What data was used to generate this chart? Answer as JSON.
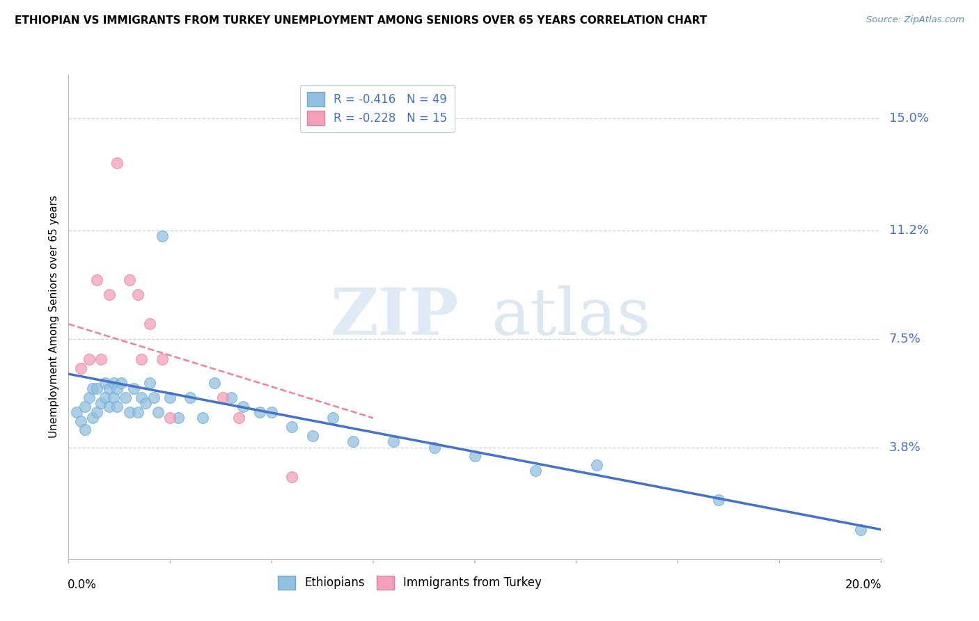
{
  "title": "ETHIOPIAN VS IMMIGRANTS FROM TURKEY UNEMPLOYMENT AMONG SENIORS OVER 65 YEARS CORRELATION CHART",
  "source": "Source: ZipAtlas.com",
  "ylabel": "Unemployment Among Seniors over 65 years",
  "xlim": [
    0.0,
    0.2
  ],
  "ylim": [
    0.0,
    0.165
  ],
  "ytick_positions": [
    0.038,
    0.075,
    0.112,
    0.15
  ],
  "ytick_labels": [
    "3.8%",
    "7.5%",
    "11.2%",
    "15.0%"
  ],
  "watermark_zip": "ZIP",
  "watermark_atlas": "atlas",
  "legend_entries": [
    {
      "label": "R = -0.416   N = 49",
      "color": "#a8c4e0"
    },
    {
      "label": "R = -0.228   N = 15",
      "color": "#f4b8c8"
    }
  ],
  "ethiopians_color": "#92c0e0",
  "turkey_color": "#f4a0b8",
  "trend_ethiopians_color": "#4472c4",
  "trend_turkey_color": "#f48099",
  "background_color": "#ffffff",
  "grid_color": "#c8d4e8",
  "ethiopians_x": [
    0.002,
    0.003,
    0.004,
    0.004,
    0.005,
    0.006,
    0.006,
    0.007,
    0.007,
    0.008,
    0.009,
    0.009,
    0.01,
    0.01,
    0.011,
    0.011,
    0.012,
    0.012,
    0.013,
    0.014,
    0.015,
    0.016,
    0.017,
    0.018,
    0.019,
    0.02,
    0.021,
    0.022,
    0.023,
    0.025,
    0.027,
    0.03,
    0.033,
    0.036,
    0.04,
    0.043,
    0.047,
    0.05,
    0.055,
    0.06,
    0.065,
    0.07,
    0.08,
    0.09,
    0.1,
    0.115,
    0.13,
    0.16,
    0.195
  ],
  "ethiopians_y": [
    0.05,
    0.047,
    0.052,
    0.044,
    0.055,
    0.048,
    0.058,
    0.05,
    0.058,
    0.053,
    0.06,
    0.055,
    0.052,
    0.058,
    0.055,
    0.06,
    0.052,
    0.058,
    0.06,
    0.055,
    0.05,
    0.058,
    0.05,
    0.055,
    0.053,
    0.06,
    0.055,
    0.05,
    0.11,
    0.055,
    0.048,
    0.055,
    0.048,
    0.06,
    0.055,
    0.052,
    0.05,
    0.05,
    0.045,
    0.042,
    0.048,
    0.04,
    0.04,
    0.038,
    0.035,
    0.03,
    0.032,
    0.02,
    0.01
  ],
  "turkey_x": [
    0.003,
    0.005,
    0.007,
    0.008,
    0.01,
    0.012,
    0.015,
    0.017,
    0.018,
    0.02,
    0.023,
    0.025,
    0.038,
    0.042,
    0.055
  ],
  "turkey_y": [
    0.065,
    0.068,
    0.095,
    0.068,
    0.09,
    0.135,
    0.095,
    0.09,
    0.068,
    0.08,
    0.068,
    0.048,
    0.055,
    0.048,
    0.028
  ],
  "eth_trend_x0": 0.0,
  "eth_trend_y0": 0.063,
  "eth_trend_x1": 0.2,
  "eth_trend_y1": 0.01,
  "tur_trend_x0": 0.0,
  "tur_trend_y0": 0.08,
  "tur_trend_x1": 0.075,
  "tur_trend_y1": 0.048
}
